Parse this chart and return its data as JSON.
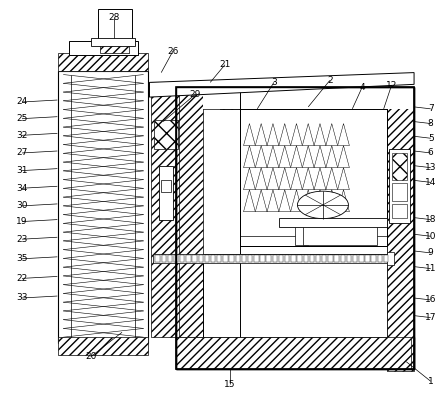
{
  "bg": "#ffffff",
  "lc": "#000000",
  "fig_w": 4.43,
  "fig_h": 3.99,
  "labels_left": [
    "24",
    "25",
    "32",
    "27",
    "31",
    "34",
    "30",
    "19",
    "23",
    "35",
    "22",
    "33"
  ],
  "labels_right": [
    "7",
    "8",
    "5",
    "6",
    "13",
    "14",
    "18",
    "10",
    "9",
    "11",
    "16",
    "17"
  ],
  "label_top": [
    "28",
    "26",
    "29",
    "21",
    "3",
    "2",
    "4",
    "12"
  ],
  "label_bot": [
    "20",
    "15",
    "1"
  ]
}
